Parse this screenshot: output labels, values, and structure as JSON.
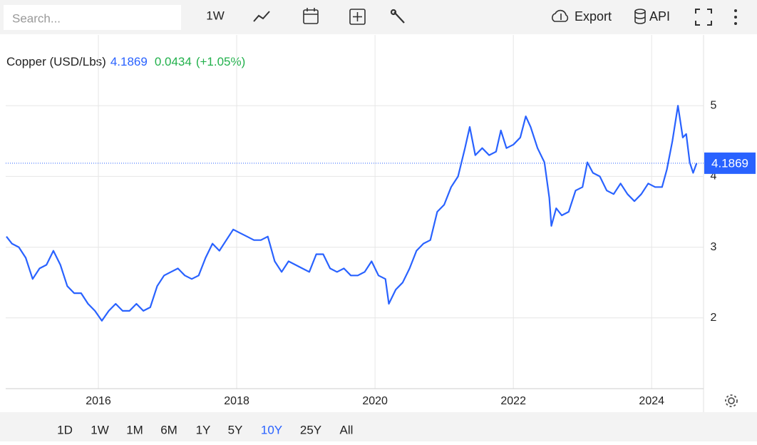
{
  "toolbar": {
    "search_placeholder": "Search...",
    "interval": "1W",
    "export": "Export",
    "api": "API"
  },
  "chart_data": {
    "type": "line",
    "title": "Copper (USD/Lbs)",
    "last_price": 4.1869,
    "change": "0.0434",
    "change_pct": "(+1.05%)",
    "x": [
      2014.67,
      2014.75,
      2014.85,
      2014.95,
      2015.05,
      2015.15,
      2015.25,
      2015.35,
      2015.45,
      2015.55,
      2015.65,
      2015.75,
      2015.85,
      2015.95,
      2016.05,
      2016.15,
      2016.25,
      2016.35,
      2016.45,
      2016.55,
      2016.65,
      2016.75,
      2016.85,
      2016.95,
      2017.05,
      2017.15,
      2017.25,
      2017.35,
      2017.45,
      2017.55,
      2017.65,
      2017.75,
      2017.85,
      2017.95,
      2018.05,
      2018.15,
      2018.25,
      2018.35,
      2018.45,
      2018.55,
      2018.65,
      2018.75,
      2018.85,
      2018.95,
      2019.05,
      2019.15,
      2019.25,
      2019.35,
      2019.45,
      2019.55,
      2019.65,
      2019.75,
      2019.85,
      2019.95,
      2020.05,
      2020.15,
      2020.2,
      2020.3,
      2020.4,
      2020.5,
      2020.6,
      2020.7,
      2020.8,
      2020.9,
      2021.0,
      2021.1,
      2021.2,
      2021.3,
      2021.37,
      2021.45,
      2021.55,
      2021.65,
      2021.75,
      2021.82,
      2021.9,
      2022.0,
      2022.1,
      2022.18,
      2022.25,
      2022.35,
      2022.45,
      2022.52,
      2022.55,
      2022.62,
      2022.7,
      2022.8,
      2022.9,
      2023.0,
      2023.07,
      2023.15,
      2023.25,
      2023.35,
      2023.45,
      2023.55,
      2023.65,
      2023.75,
      2023.85,
      2023.95,
      2024.05,
      2024.15,
      2024.22,
      2024.3,
      2024.38,
      2024.45,
      2024.5,
      2024.55,
      2024.6,
      2024.65
    ],
    "series": [
      {
        "name": "Copper",
        "color": "#2962ff",
        "values": [
          3.15,
          3.05,
          3.0,
          2.85,
          2.55,
          2.7,
          2.75,
          2.95,
          2.75,
          2.45,
          2.35,
          2.35,
          2.2,
          2.1,
          1.96,
          2.1,
          2.2,
          2.1,
          2.1,
          2.2,
          2.1,
          2.15,
          2.45,
          2.6,
          2.65,
          2.7,
          2.6,
          2.55,
          2.6,
          2.85,
          3.05,
          2.95,
          3.1,
          3.25,
          3.2,
          3.15,
          3.1,
          3.1,
          3.15,
          2.8,
          2.65,
          2.8,
          2.75,
          2.7,
          2.65,
          2.9,
          2.9,
          2.7,
          2.65,
          2.7,
          2.6,
          2.6,
          2.65,
          2.8,
          2.6,
          2.55,
          2.2,
          2.4,
          2.5,
          2.7,
          2.95,
          3.05,
          3.1,
          3.5,
          3.6,
          3.85,
          4.0,
          4.4,
          4.7,
          4.3,
          4.4,
          4.3,
          4.35,
          4.65,
          4.4,
          4.45,
          4.55,
          4.85,
          4.7,
          4.4,
          4.2,
          3.7,
          3.3,
          3.55,
          3.45,
          3.5,
          3.8,
          3.85,
          4.2,
          4.05,
          4.0,
          3.8,
          3.75,
          3.9,
          3.75,
          3.65,
          3.75,
          3.9,
          3.85,
          3.85,
          4.1,
          4.5,
          5.0,
          4.55,
          4.6,
          4.2,
          4.05,
          4.1869
        ]
      }
    ],
    "xlim": [
      2014.66,
      2024.75
    ],
    "xticks": [
      2016,
      2018,
      2020,
      2022,
      2024
    ],
    "ylim": [
      1,
      6
    ],
    "yticks": [
      2,
      3,
      4,
      5
    ],
    "grid": true
  },
  "ranges": [
    "1D",
    "1W",
    "1M",
    "6M",
    "1Y",
    "5Y",
    "10Y",
    "25Y",
    "All"
  ],
  "active_range_index": 6
}
